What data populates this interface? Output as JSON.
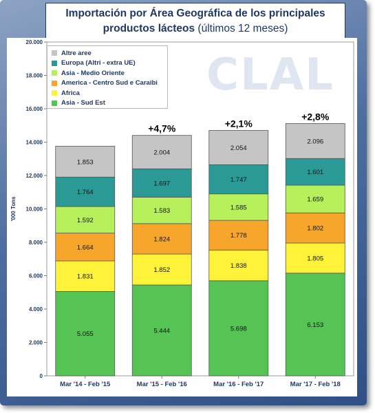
{
  "title_line1": "Importación por Área Geográfica de los principales",
  "title_line2_bold": "productos lácteos",
  "title_line2_rest": " (últimos 12 meses)",
  "watermark": "CLAL",
  "chart_data": {
    "type": "bar",
    "stacked": true,
    "title": "Importación por Área Geográfica de los principales productos lácteos (últimos 12 meses)",
    "ylabel": "'000 Tons",
    "ylim": [
      0,
      20
    ],
    "yticks": [
      "0",
      "2.000",
      "4.000",
      "6.000",
      "8.000",
      "10.000",
      "12.000",
      "14.000",
      "16.000",
      "18.000",
      "20.000"
    ],
    "grid": false,
    "legend_position": "top-left",
    "categories": [
      "Mar '14 - Feb '15",
      "Mar '15 - Feb '16",
      "Mar '16 - Feb '17",
      "Mar '17 - Feb '18"
    ],
    "series": [
      {
        "name": "Asia - Sud Est",
        "color": "#55c455",
        "values": [
          5.055,
          5.444,
          5.698,
          6.153
        ],
        "labels": [
          "5.055",
          "5.444",
          "5.698",
          "6.153"
        ]
      },
      {
        "name": "Africa",
        "color": "#fff33a",
        "values": [
          1.831,
          1.852,
          1.838,
          1.805
        ],
        "labels": [
          "1.831",
          "1.852",
          "1.838",
          "1.805"
        ]
      },
      {
        "name": "America - Centro Sud e Caraibi",
        "color": "#f8a62b",
        "values": [
          1.664,
          1.824,
          1.778,
          1.802
        ],
        "labels": [
          "1.664",
          "1.824",
          "1.778",
          "1.802"
        ]
      },
      {
        "name": "Asia - Medio Oriente",
        "color": "#b6f05a",
        "values": [
          1.592,
          1.583,
          1.585,
          1.659
        ],
        "labels": [
          "1.592",
          "1.583",
          "1.585",
          "1.659"
        ]
      },
      {
        "name": "Europa (Altri - extra UE)",
        "color": "#2b9a96",
        "values": [
          1.764,
          1.697,
          1.747,
          1.601
        ],
        "labels": [
          "1.764",
          "1.697",
          "1.747",
          "1.601"
        ]
      },
      {
        "name": "Altre aree",
        "color": "#c5c5c5",
        "values": [
          1.853,
          2.004,
          2.054,
          2.096
        ],
        "labels": [
          "1.853",
          "2.004",
          "2.054",
          "2.096"
        ]
      }
    ],
    "annotations": [
      "",
      "+4,7%",
      "+2,1%",
      "+2,8%"
    ]
  }
}
